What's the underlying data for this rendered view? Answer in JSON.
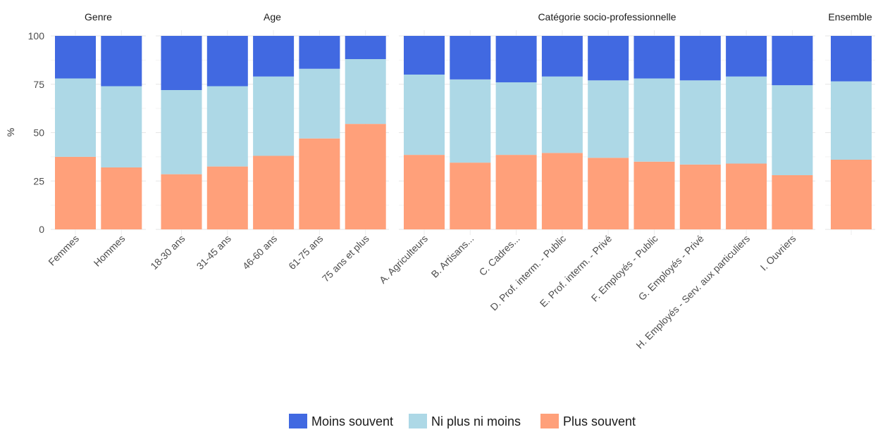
{
  "chart_data": {
    "type": "bar",
    "stacked": true,
    "ylabel": "%",
    "ylim": [
      0,
      100
    ],
    "yticks": [
      0,
      25,
      50,
      75,
      100
    ],
    "grid": true,
    "legend_position": "bottom",
    "panels": [
      {
        "title": "Genre",
        "categories": [
          "Femmes",
          "Hommes"
        ],
        "series": [
          {
            "name": "Plus souvent",
            "values": [
              37.5,
              32
            ]
          },
          {
            "name": "Ni plus ni moins",
            "values": [
              40.5,
              42
            ]
          },
          {
            "name": "Moins souvent",
            "values": [
              22,
              26
            ]
          }
        ]
      },
      {
        "title": "Age",
        "categories": [
          "18-30 ans",
          "31-45 ans",
          "46-60 ans",
          "61-75 ans",
          "75 ans et plus"
        ],
        "series": [
          {
            "name": "Plus souvent",
            "values": [
              28.5,
              32.5,
              38,
              47,
              54.5
            ]
          },
          {
            "name": "Ni plus ni moins",
            "values": [
              43.5,
              41.5,
              41,
              36,
              33.5
            ]
          },
          {
            "name": "Moins souvent",
            "values": [
              28,
              26,
              21,
              17,
              12
            ]
          }
        ]
      },
      {
        "title": "Catégorie socio-professionnelle",
        "categories": [
          "A. Agriculteurs",
          "B. Artisans...",
          "C. Cadres...",
          "D. Prof. interm. - Public",
          "E. Prof. interm. - Privé",
          "F. Employés - Public",
          "G. Employés - Privé",
          "H. Employés - Serv. aux particuliers",
          "I. Ouvriers"
        ],
        "series": [
          {
            "name": "Plus souvent",
            "values": [
              38.5,
              34.5,
              38.5,
              39.5,
              37,
              35,
              33.5,
              34,
              28
            ]
          },
          {
            "name": "Ni plus ni moins",
            "values": [
              41.5,
              43,
              37.5,
              39.5,
              40,
              43,
              43.5,
              45,
              46.5
            ]
          },
          {
            "name": "Moins souvent",
            "values": [
              20,
              22.5,
              24,
              21,
              23,
              22,
              23,
              21,
              25.5
            ]
          }
        ]
      },
      {
        "title": "Ensemble",
        "categories": [
          ""
        ],
        "series": [
          {
            "name": "Plus souvent",
            "values": [
              36
            ]
          },
          {
            "name": "Ni plus ni moins",
            "values": [
              40.5
            ]
          },
          {
            "name": "Moins souvent",
            "values": [
              23.5
            ]
          }
        ]
      }
    ],
    "legend": [
      {
        "name": "Moins souvent",
        "color": "#4169E1"
      },
      {
        "name": "Ni plus ni moins",
        "color": "#ADD8E6"
      },
      {
        "name": "Plus souvent",
        "color": "#FFA07A"
      }
    ]
  }
}
